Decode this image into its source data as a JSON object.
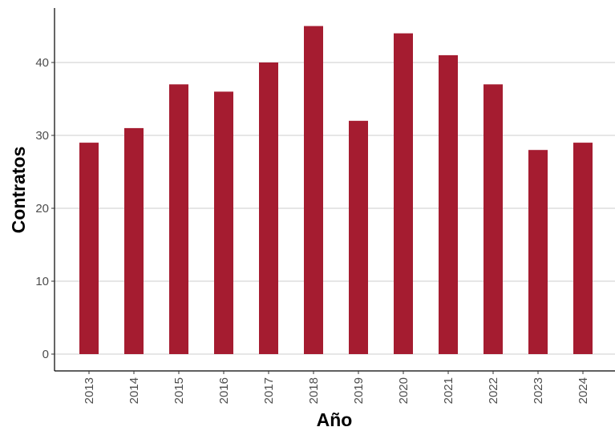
{
  "chart_data": {
    "type": "bar",
    "categories": [
      "2013",
      "2014",
      "2015",
      "2016",
      "2017",
      "2018",
      "2019",
      "2020",
      "2021",
      "2022",
      "2023",
      "2024"
    ],
    "values": [
      29,
      31,
      37,
      36,
      40,
      45,
      32,
      44,
      41,
      37,
      28,
      29
    ],
    "title": "",
    "xlabel": "Año",
    "ylabel": "Contratos",
    "ylim": [
      0,
      47
    ],
    "yticks": [
      0,
      10,
      20,
      30,
      40
    ],
    "grid": "horizontal major",
    "legend": "none",
    "bar_color": "#a51c30",
    "xtick_rotation": "vertical"
  }
}
